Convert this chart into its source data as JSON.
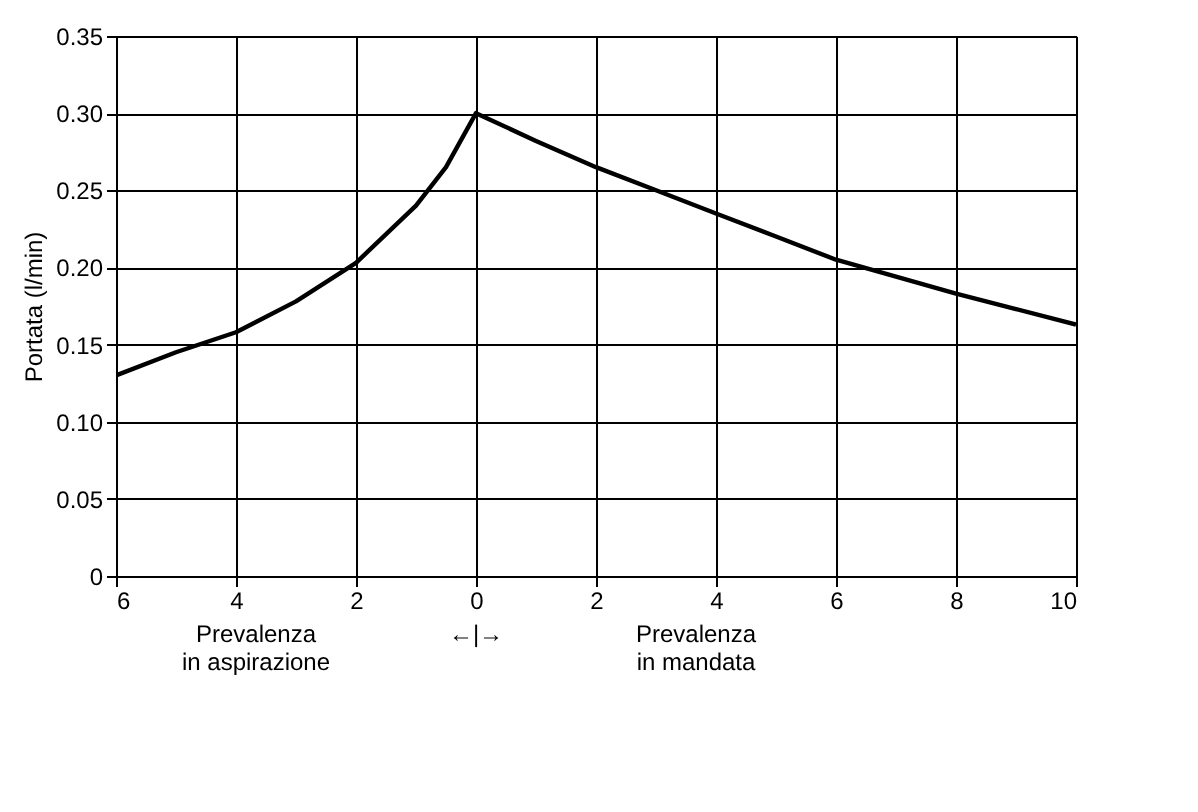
{
  "chart_data": {
    "type": "line",
    "ylabel": "Portata (l/min)",
    "x": [
      -6,
      -5,
      -4,
      -3,
      -2,
      -1,
      -0.5,
      0,
      1,
      2,
      3,
      4,
      5,
      6,
      7,
      8,
      9,
      10
    ],
    "series": [
      {
        "color": "#000000",
        "values": [
          0.13,
          0.145,
          0.158,
          0.178,
          0.203,
          0.24,
          0.265,
          0.3,
          0.282,
          0.265,
          0.25,
          0.235,
          0.22,
          0.205,
          0.194,
          0.183,
          0.173,
          0.163
        ]
      }
    ],
    "xlim": [
      -6,
      10
    ],
    "xticks": [
      {
        "value": -6,
        "label": "6"
      },
      {
        "value": -4,
        "label": "4"
      },
      {
        "value": -2,
        "label": "2"
      },
      0,
      2,
      4,
      6,
      8,
      10
    ],
    "ylim": [
      0,
      0.35
    ],
    "yticks": [
      0,
      0.05,
      {
        "value": 0.1,
        "label": "0.10"
      },
      0.15,
      {
        "value": 0.2,
        "label": "0.20"
      },
      0.25,
      {
        "value": 0.3,
        "label": "0.30"
      },
      0.35
    ],
    "grid": true,
    "marker": "none",
    "line_style": "solid",
    "annotations": [
      "Prevalenza\nin aspirazione",
      "←|→",
      "Prevalenza\nin mandata"
    ]
  }
}
